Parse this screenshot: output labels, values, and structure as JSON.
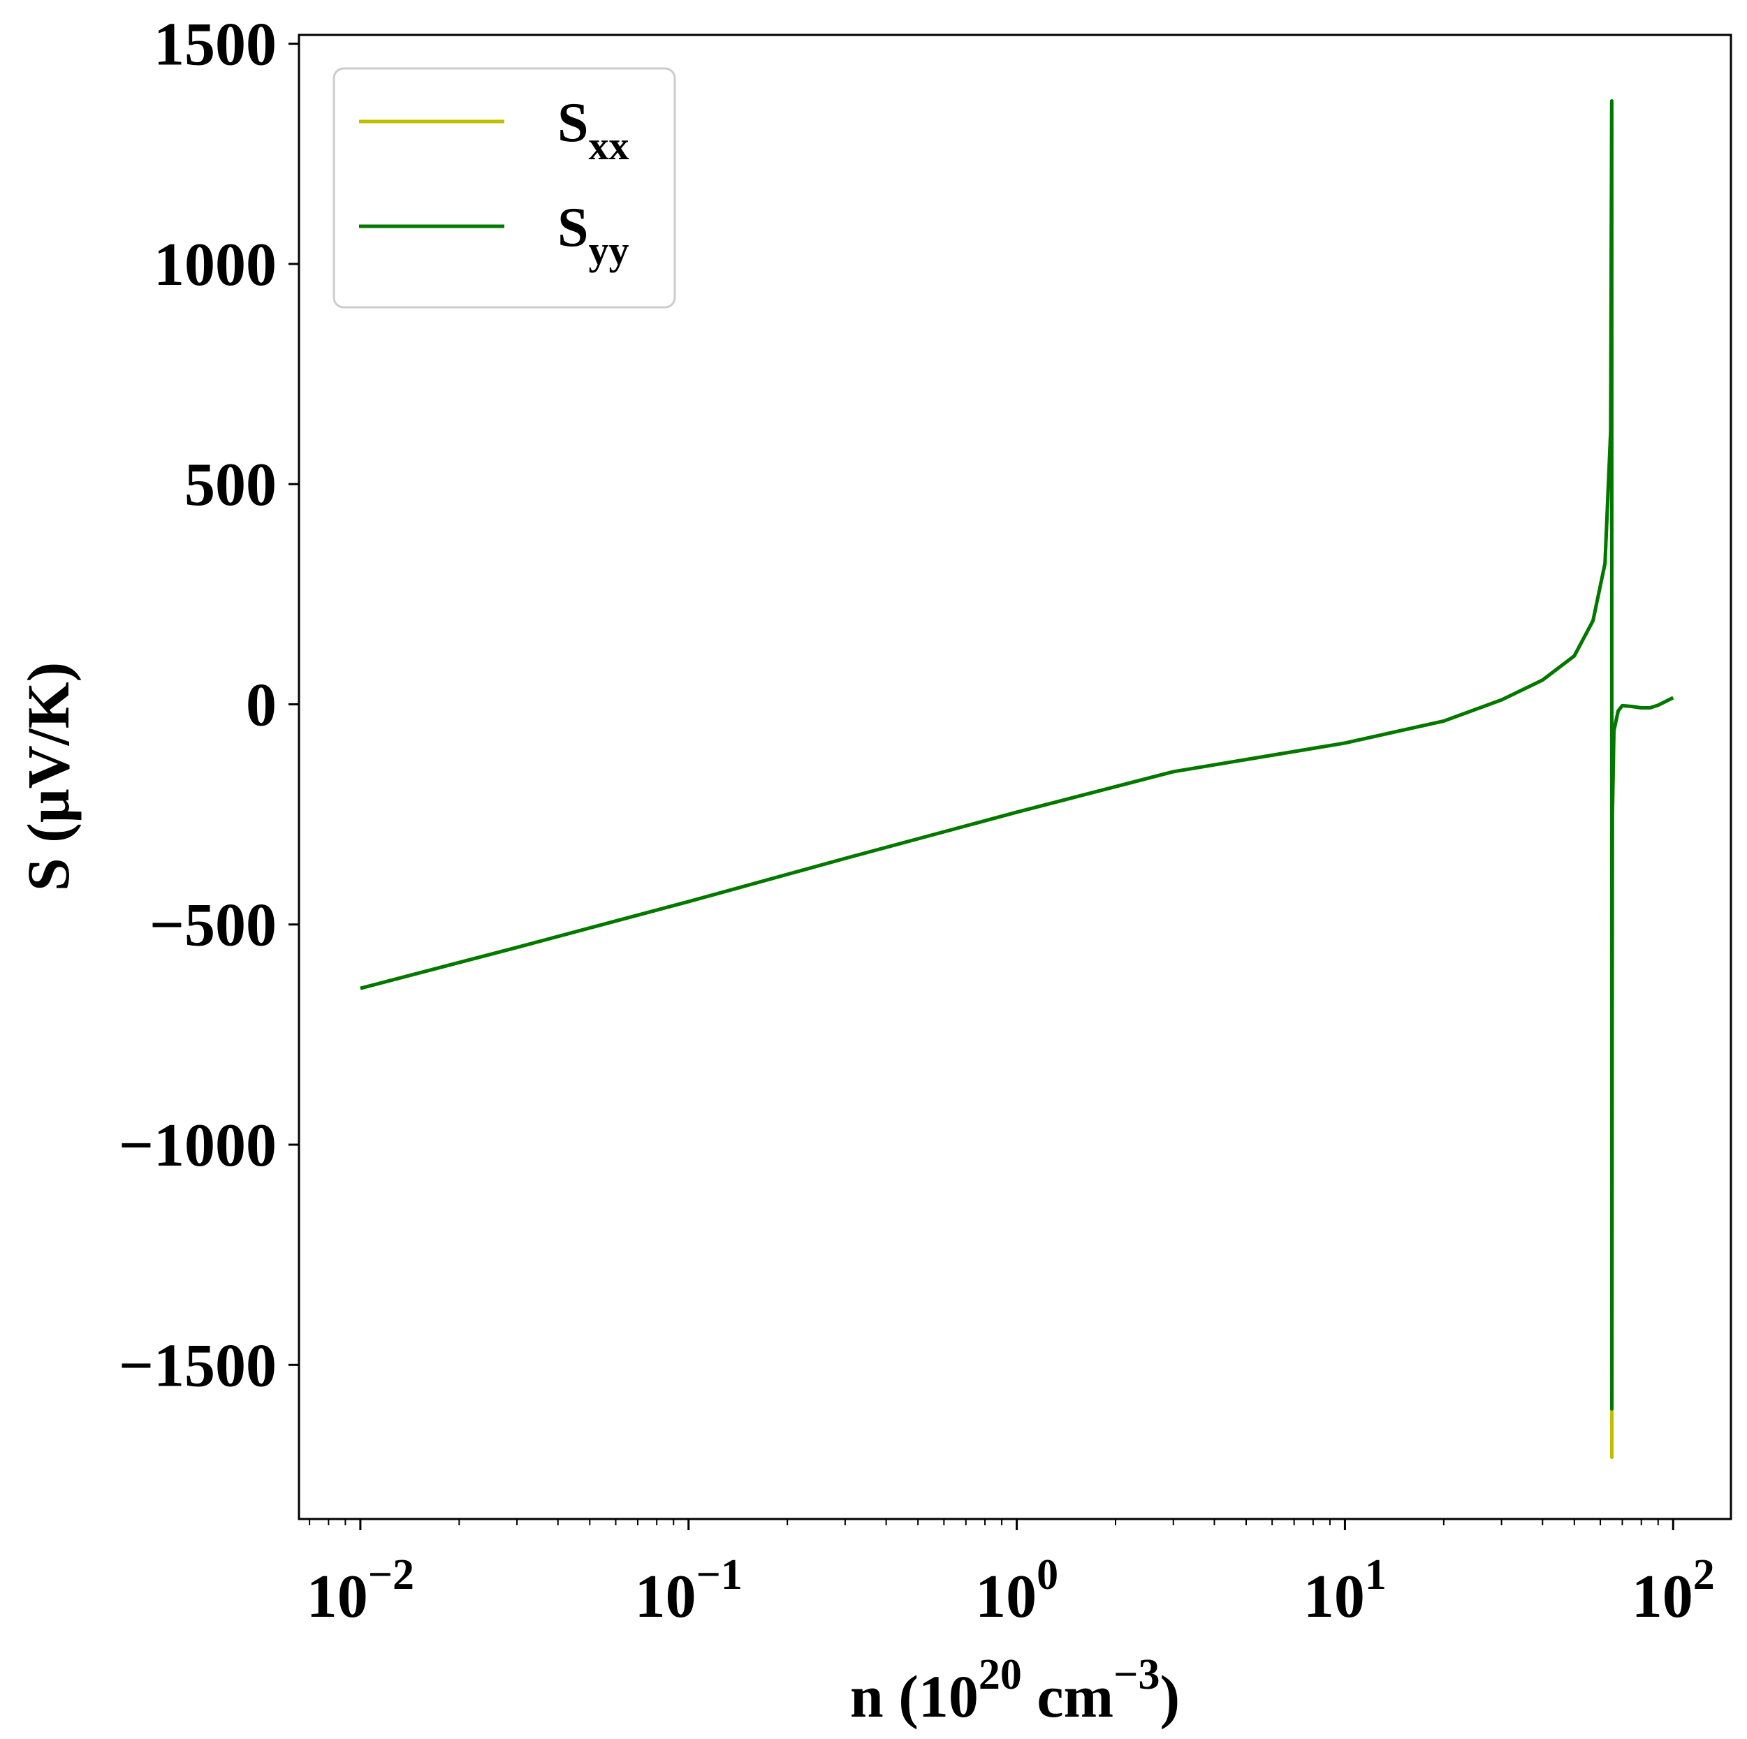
{
  "chart_data": {
    "type": "line",
    "title": "",
    "xlabel": {
      "base": "n (10",
      "exp1": "20",
      "mid": " cm",
      "exp2": "−3",
      "tail": ")"
    },
    "ylabel": "S (μV/K)",
    "xscale": "log",
    "xlim": [
      0.0065,
      150
    ],
    "ylim": [
      -1850,
      1520
    ],
    "yticks": [
      -1500,
      -1000,
      -500,
      0,
      500,
      1000,
      1500
    ],
    "ytick_labels": [
      "−1500",
      "−1000",
      "−500",
      "0",
      "500",
      "1000",
      "1500"
    ],
    "xticks": [
      {
        "base": "10",
        "exp": "−2",
        "value": 0.01
      },
      {
        "base": "10",
        "exp": "−1",
        "value": 0.1
      },
      {
        "base": "10",
        "exp": "0",
        "value": 1
      },
      {
        "base": "10",
        "exp": "1",
        "value": 10
      },
      {
        "base": "10",
        "exp": "2",
        "value": 100
      }
    ],
    "grid": false,
    "legend_position": "top-left",
    "series": [
      {
        "name": "S",
        "sub": "xx",
        "color": "#bfbf00",
        "points": [
          [
            0.01,
            -645
          ],
          [
            0.03,
            -552
          ],
          [
            0.1,
            -448
          ],
          [
            0.3,
            -350
          ],
          [
            1,
            -245
          ],
          [
            3,
            -153
          ],
          [
            10,
            -88
          ],
          [
            20,
            -38
          ],
          [
            30,
            10
          ],
          [
            40,
            55
          ],
          [
            50,
            110
          ],
          [
            57,
            190
          ],
          [
            62,
            320
          ],
          [
            64.5,
            620
          ],
          [
            65,
            1370
          ],
          [
            65.05,
            -1710
          ],
          [
            65.3,
            -250
          ],
          [
            66,
            -60
          ],
          [
            68,
            -15
          ],
          [
            70,
            -3
          ],
          [
            75,
            -5
          ],
          [
            80,
            -8
          ],
          [
            85,
            -8
          ],
          [
            90,
            -2
          ],
          [
            100,
            15
          ]
        ]
      },
      {
        "name": "S",
        "sub": "yy",
        "color": "#007800",
        "points": [
          [
            0.01,
            -645
          ],
          [
            0.03,
            -552
          ],
          [
            0.1,
            -448
          ],
          [
            0.3,
            -350
          ],
          [
            1,
            -245
          ],
          [
            3,
            -153
          ],
          [
            10,
            -88
          ],
          [
            20,
            -38
          ],
          [
            30,
            10
          ],
          [
            40,
            55
          ],
          [
            50,
            110
          ],
          [
            57,
            190
          ],
          [
            62,
            320
          ],
          [
            64.5,
            620
          ],
          [
            65,
            1370
          ],
          [
            65.05,
            -1600
          ],
          [
            65.3,
            -250
          ],
          [
            66,
            -60
          ],
          [
            68,
            -15
          ],
          [
            70,
            -3
          ],
          [
            75,
            -5
          ],
          [
            80,
            -8
          ],
          [
            85,
            -8
          ],
          [
            90,
            -2
          ],
          [
            100,
            15
          ]
        ]
      }
    ]
  }
}
